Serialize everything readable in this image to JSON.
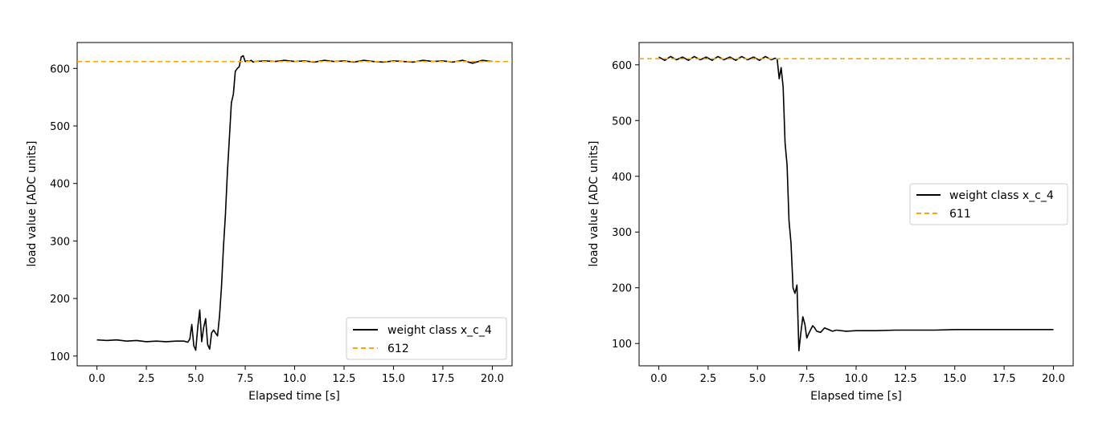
{
  "chart_data": [
    {
      "type": "line",
      "title": "",
      "xlabel": "Elapsed time [s]",
      "ylabel": "load value [ADC units]",
      "xlim": [
        -1.0,
        21.0
      ],
      "ylim": [
        83,
        645
      ],
      "x_ticks": [
        0.0,
        2.5,
        5.0,
        7.5,
        10.0,
        12.5,
        15.0,
        17.5,
        20.0
      ],
      "x_tick_labels": [
        "0.0",
        "2.5",
        "5.0",
        "7.5",
        "10.0",
        "12.5",
        "15.0",
        "17.5",
        "20.0"
      ],
      "y_ticks": [
        100,
        200,
        300,
        400,
        500,
        600
      ],
      "y_tick_labels": [
        "100",
        "200",
        "300",
        "400",
        "500",
        "600"
      ],
      "legend_position": "lower right",
      "series": [
        {
          "name": "weight class x_c_4",
          "color": "#000000",
          "style": "solid",
          "x": [
            0.0,
            0.5,
            1.0,
            1.5,
            2.0,
            2.5,
            3.0,
            3.5,
            4.0,
            4.4,
            4.6,
            4.7,
            4.8,
            4.9,
            5.0,
            5.1,
            5.2,
            5.3,
            5.4,
            5.5,
            5.6,
            5.7,
            5.8,
            5.9,
            6.0,
            6.1,
            6.2,
            6.3,
            6.4,
            6.5,
            6.6,
            6.7,
            6.8,
            6.9,
            7.0,
            7.1,
            7.2,
            7.3,
            7.4,
            7.5,
            7.6,
            7.7,
            7.8,
            7.9,
            8.0,
            8.5,
            9.0,
            9.5,
            10.0,
            10.5,
            11.0,
            11.5,
            12.0,
            12.5,
            13.0,
            13.5,
            14.0,
            14.5,
            15.0,
            15.5,
            16.0,
            16.5,
            17.0,
            17.5,
            18.0,
            18.5,
            19.0,
            19.5,
            20.0
          ],
          "y": [
            128,
            127,
            128,
            126,
            127,
            125,
            126,
            125,
            126,
            126,
            124,
            130,
            155,
            118,
            110,
            150,
            180,
            125,
            150,
            165,
            120,
            112,
            140,
            145,
            140,
            135,
            170,
            220,
            290,
            345,
            420,
            480,
            540,
            555,
            595,
            600,
            603,
            620,
            622,
            612,
            613,
            612,
            614,
            611,
            612,
            613,
            612,
            614,
            612,
            613,
            611,
            614,
            612,
            613,
            611,
            614,
            612,
            611,
            613,
            612,
            611,
            614,
            612,
            613,
            611,
            614,
            609,
            614,
            612
          ]
        },
        {
          "name": "612",
          "color": "#ffa500",
          "style": "dashed",
          "x": [
            -1.0,
            21.0
          ],
          "y": [
            612,
            612
          ]
        }
      ]
    },
    {
      "type": "line",
      "title": "",
      "xlabel": "Elapsed time [s]",
      "ylabel": "load value [ADC units]",
      "xlim": [
        -1.0,
        21.0
      ],
      "ylim": [
        60,
        640
      ],
      "x_ticks": [
        0.0,
        2.5,
        5.0,
        7.5,
        10.0,
        12.5,
        15.0,
        17.5,
        20.0
      ],
      "x_tick_labels": [
        "0.0",
        "2.5",
        "5.0",
        "7.5",
        "10.0",
        "12.5",
        "15.0",
        "17.5",
        "20.0"
      ],
      "y_ticks": [
        100,
        200,
        300,
        400,
        500,
        600
      ],
      "y_tick_labels": [
        "100",
        "200",
        "300",
        "400",
        "500",
        "600"
      ],
      "legend_position": "center right",
      "series": [
        {
          "name": "weight class x_c_4",
          "color": "#000000",
          "style": "solid",
          "x": [
            0.0,
            0.3,
            0.6,
            0.9,
            1.2,
            1.5,
            1.8,
            2.1,
            2.4,
            2.7,
            3.0,
            3.3,
            3.6,
            3.9,
            4.2,
            4.5,
            4.8,
            5.1,
            5.4,
            5.7,
            5.9,
            6.0,
            6.1,
            6.2,
            6.3,
            6.4,
            6.5,
            6.6,
            6.7,
            6.8,
            6.9,
            7.0,
            7.1,
            7.2,
            7.3,
            7.4,
            7.5,
            7.6,
            7.7,
            7.8,
            7.9,
            8.0,
            8.2,
            8.4,
            8.6,
            8.8,
            9.0,
            9.5,
            10.0,
            11.0,
            12.0,
            13.0,
            14.0,
            15.0,
            16.0,
            17.0,
            18.0,
            19.0,
            20.0
          ],
          "y": [
            614,
            608,
            615,
            609,
            614,
            608,
            615,
            609,
            614,
            608,
            615,
            609,
            614,
            608,
            615,
            609,
            614,
            608,
            615,
            609,
            612,
            610,
            575,
            595,
            560,
            460,
            420,
            320,
            280,
            200,
            190,
            205,
            87,
            120,
            148,
            135,
            110,
            118,
            125,
            132,
            128,
            122,
            120,
            128,
            125,
            122,
            124,
            122,
            123,
            123,
            124,
            124,
            124,
            125,
            125,
            125,
            125,
            125,
            125
          ]
        },
        {
          "name": "611",
          "color": "#ffa500",
          "style": "dashed",
          "x": [
            -1.0,
            21.0
          ],
          "y": [
            611,
            611
          ]
        }
      ]
    }
  ]
}
